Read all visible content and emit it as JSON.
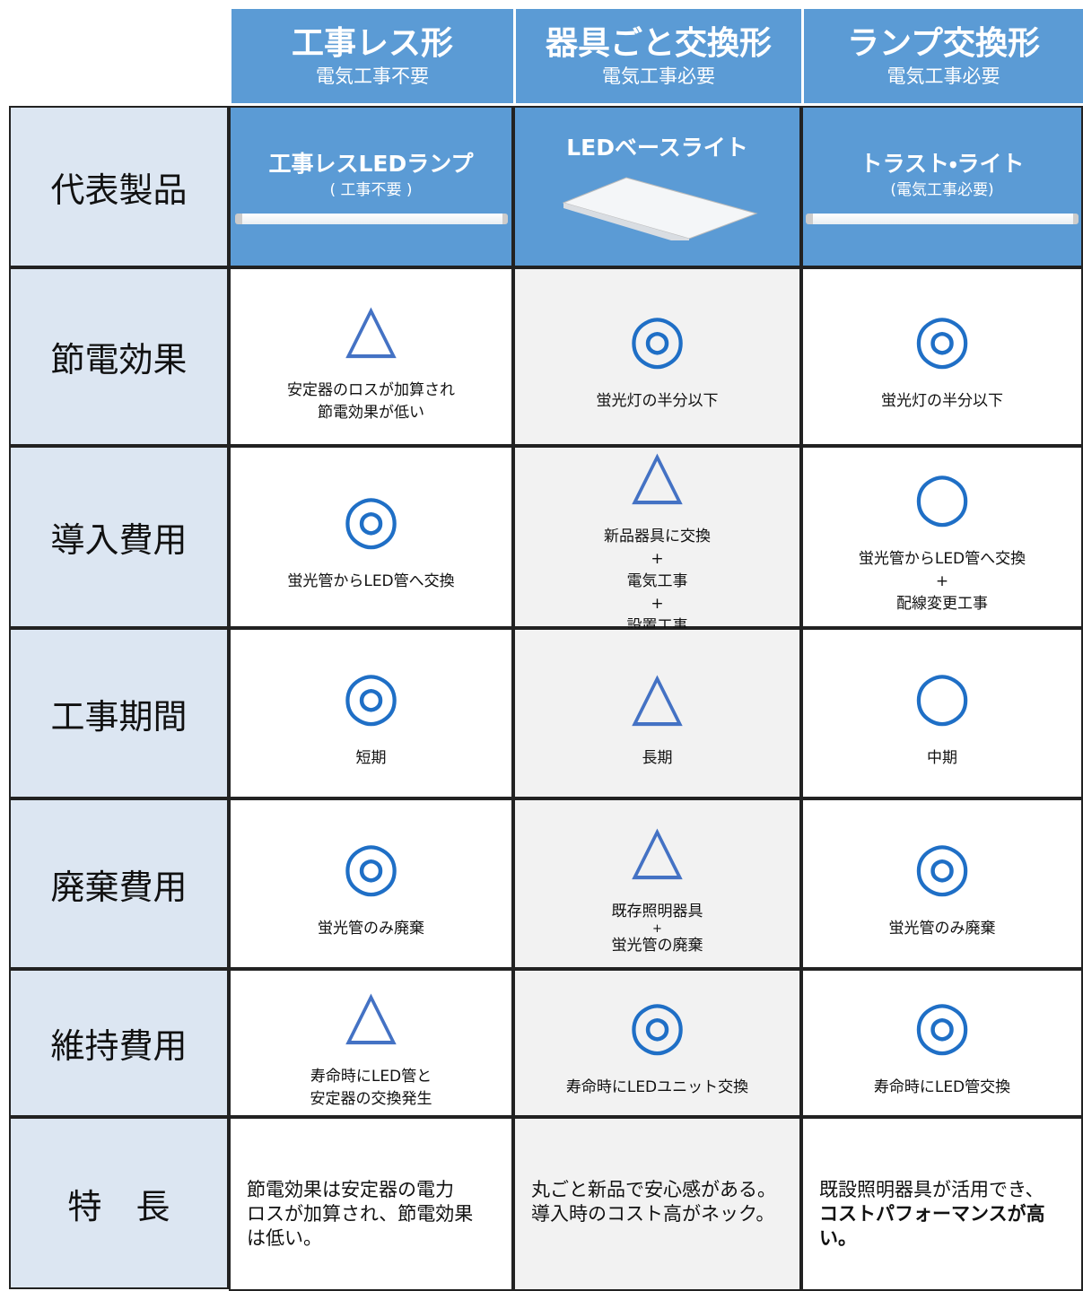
{
  "header": {
    "columns": [
      {
        "title": "工事レス形",
        "subtitle": "電気工事不要"
      },
      {
        "title": "器具ごと交換形",
        "subtitle": "電気工事必要"
      },
      {
        "title": "ランプ交換形",
        "subtitle": "電気工事必要"
      }
    ]
  },
  "products": {
    "label": "代表製品",
    "items": [
      {
        "name": "工事レスLEDランプ",
        "sub": "( 工事不要 )"
      },
      {
        "name": "LEDベースライト"
      },
      {
        "name": "トラスト・ライト",
        "sub": "(電気工事必要)"
      }
    ]
  },
  "rows": [
    {
      "label": "節電効果",
      "cells": [
        {
          "mark": "△",
          "lines": [
            "安定器のロスが加算され",
            "節電効果が低い"
          ]
        },
        {
          "mark": "◎",
          "lines": [
            "蛍光灯の半分以下"
          ]
        },
        {
          "mark": "◎",
          "lines": [
            "蛍光灯の半分以下"
          ]
        }
      ]
    },
    {
      "label": "導入費用",
      "cells": [
        {
          "mark": "◎",
          "lines": [
            "蛍光管からLED管へ交換"
          ]
        },
        {
          "mark": "△",
          "lines": [
            "新品器具に交換",
            "+",
            "電気工事",
            "+",
            "設置工事"
          ]
        },
        {
          "mark": "○",
          "lines": [
            "蛍光管からLED管へ交換",
            "+",
            "配線変更工事"
          ]
        }
      ]
    },
    {
      "label": "工事期間",
      "cells": [
        {
          "mark": "◎",
          "lines": [
            "短期"
          ]
        },
        {
          "mark": "△",
          "lines": [
            "長期"
          ]
        },
        {
          "mark": "○",
          "lines": [
            "中期"
          ]
        }
      ]
    },
    {
      "label": "廃棄費用",
      "cells": [
        {
          "mark": "◎",
          "lines": [
            "蛍光管のみ廃棄"
          ]
        },
        {
          "mark": "△",
          "lines": [
            "既存照明器具",
            "+",
            "蛍光管の廃棄"
          ]
        },
        {
          "mark": "◎",
          "lines": [
            "蛍光管のみ廃棄"
          ]
        }
      ]
    },
    {
      "label": "維持費用",
      "cells": [
        {
          "mark": "△",
          "lines": [
            "寿命時にLED管と",
            "安定器の交換発生"
          ]
        },
        {
          "mark": "◎",
          "lines": [
            "寿命時にLEDユニット交換"
          ]
        },
        {
          "mark": "◎",
          "lines": [
            "寿命時にLED管交換"
          ]
        }
      ]
    }
  ],
  "features": {
    "label": "特　長",
    "cells": [
      {
        "lines": [
          "節電効果は安定器の電力",
          "ロスが加算され、節電効果",
          "は低い。"
        ]
      },
      {
        "lines": [
          "丸ごと新品で安心感がある。",
          "導入時のコスト高がネック。"
        ]
      },
      {
        "lines": [
          "既設照明器具が活用でき、",
          "コストパフォーマンスが高い。"
        ]
      }
    ]
  }
}
